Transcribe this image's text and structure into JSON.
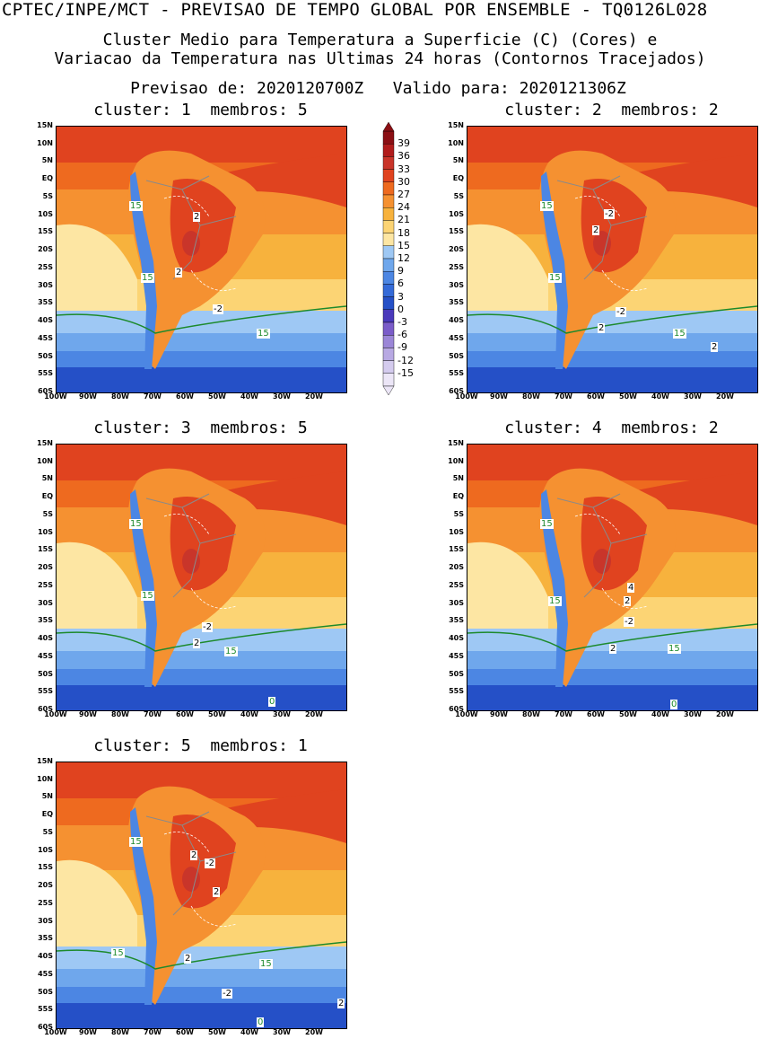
{
  "header": {
    "top": "CPTEC/INPE/MCT - PREVISAO DE TEMPO GLOBAL POR ENSEMBLE - TQ0126L028",
    "line1": "Cluster Medio para Temperatura a Superficie (C) (Cores) e",
    "line2": "Variacao da Temperatura nas Ultimas 24 horas (Contornos Tracejados)",
    "line3": "Previsao de: 2020120700Z   Valido para: 2020121306Z"
  },
  "lat_labels": [
    "15N",
    "10N",
    "5N",
    "EQ",
    "5S",
    "10S",
    "15S",
    "20S",
    "25S",
    "30S",
    "35S",
    "40S",
    "45S",
    "50S",
    "55S",
    "60S"
  ],
  "lon_labels": [
    "100W",
    "90W",
    "80W",
    "70W",
    "60W",
    "50W",
    "40W",
    "30W",
    "20W"
  ],
  "colorbar": {
    "labels": [
      "39",
      "36",
      "33",
      "30",
      "27",
      "24",
      "21",
      "18",
      "15",
      "12",
      "9",
      "6",
      "3",
      "0",
      "-3",
      "-6",
      "-9",
      "-12",
      "-15"
    ],
    "colors": [
      "#8b0f14",
      "#b11c1c",
      "#c9352a",
      "#e0431f",
      "#ee6a1f",
      "#f59131",
      "#f7b23d",
      "#fcd474",
      "#fde6a3",
      "#9ec8f4",
      "#6fa7ec",
      "#4c86e3",
      "#346ad8",
      "#2550c7",
      "#4a39bb",
      "#7a5cc9",
      "#9b86d7",
      "#b8a9e3",
      "#d4cbee",
      "#ece6f7"
    ]
  },
  "panels": [
    {
      "title": "cluster: 1  membros: 5",
      "labels": [
        {
          "t": "15"
        },
        {
          "t": "2"
        },
        {
          "t": "2"
        },
        {
          "t": "-2"
        },
        {
          "t": "15"
        },
        {
          "t": "15"
        }
      ]
    },
    {
      "title": "cluster: 2  membros: 2",
      "labels": [
        {
          "t": "15"
        },
        {
          "t": "-2"
        },
        {
          "t": "2"
        },
        {
          "t": "15"
        },
        {
          "t": "-2"
        },
        {
          "t": "2"
        },
        {
          "t": "15"
        },
        {
          "t": "2"
        }
      ]
    },
    {
      "title": "cluster: 3  membros: 5",
      "labels": [
        {
          "t": "15"
        },
        {
          "t": "15"
        },
        {
          "t": "-2"
        },
        {
          "t": "2"
        },
        {
          "t": "15"
        },
        {
          "t": "0"
        }
      ]
    },
    {
      "title": "cluster: 4  membros: 2",
      "labels": [
        {
          "t": "15"
        },
        {
          "t": "4"
        },
        {
          "t": "2"
        },
        {
          "t": "15"
        },
        {
          "t": "-2"
        },
        {
          "t": "2"
        },
        {
          "t": "15"
        },
        {
          "t": "0"
        }
      ]
    },
    {
      "title": "cluster: 5  membros: 1",
      "labels": [
        {
          "t": "15"
        },
        {
          "t": "2"
        },
        {
          "t": "-2"
        },
        {
          "t": "2"
        },
        {
          "t": "15"
        },
        {
          "t": "2"
        },
        {
          "t": "15"
        },
        {
          "t": "-2"
        },
        {
          "t": "2"
        },
        {
          "t": "0"
        }
      ]
    }
  ]
}
